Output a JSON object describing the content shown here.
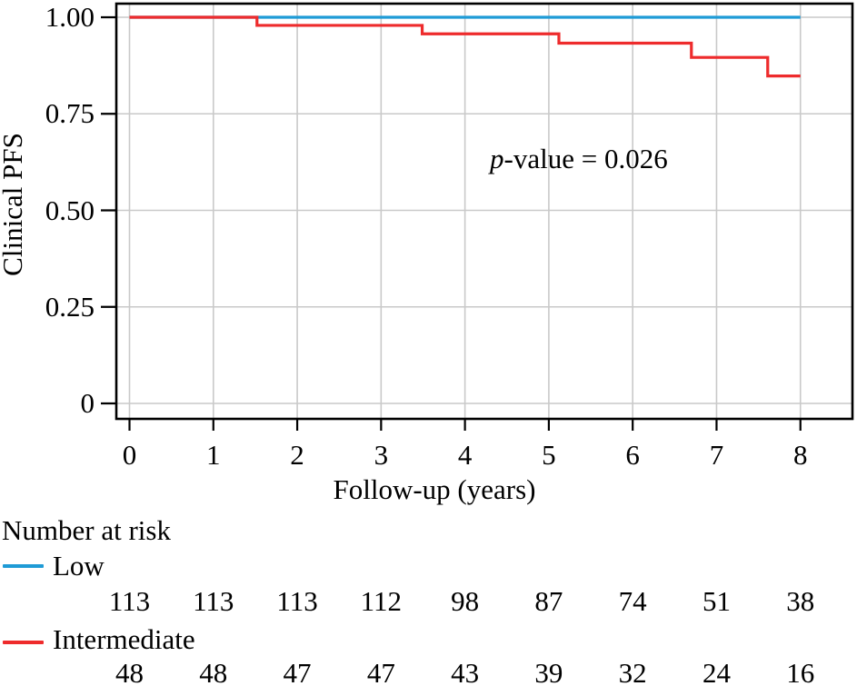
{
  "figure": {
    "background": "#ffffff"
  },
  "chart_data": {
    "type": "line",
    "subtype": "kaplan-meier-step",
    "title": "",
    "xlabel": "Follow-up (years)",
    "ylabel": "Clinical PFS",
    "xlim": [
      0,
      8
    ],
    "ylim": [
      0,
      1.0
    ],
    "xticks": [
      0,
      1,
      2,
      3,
      4,
      5,
      6,
      7,
      8
    ],
    "xtick_labels": [
      "0",
      "1",
      "2",
      "3",
      "4",
      "5",
      "6",
      "7",
      "8"
    ],
    "yticks": [
      0,
      0.25,
      0.5,
      0.75,
      1.0
    ],
    "ytick_labels": [
      "0",
      "0.25",
      "0.50",
      "0.75",
      "1.00"
    ],
    "grid": true,
    "grid_color": "#c9c9c9",
    "axis_color": "#000000",
    "legend_position": "below-left",
    "annotation": {
      "text": "p-value = 0.026",
      "italic_prefix": "p",
      "rest": "-value = 0.026"
    },
    "series": [
      {
        "name": "Low",
        "color": "#1f9bd6",
        "points": [
          [
            0,
            1.0
          ],
          [
            8,
            1.0
          ]
        ]
      },
      {
        "name": "Intermediate",
        "color": "#ee2b2c",
        "points": [
          [
            0,
            1.0
          ],
          [
            1.52,
            1.0
          ],
          [
            1.52,
            0.979
          ],
          [
            3.49,
            0.979
          ],
          [
            3.49,
            0.957
          ],
          [
            5.12,
            0.957
          ],
          [
            5.12,
            0.933
          ],
          [
            6.7,
            0.933
          ],
          [
            6.7,
            0.896
          ],
          [
            7.61,
            0.896
          ],
          [
            7.61,
            0.848
          ],
          [
            8,
            0.848
          ]
        ]
      }
    ],
    "number_at_risk": {
      "heading": "Number at risk",
      "times": [
        0,
        1,
        2,
        3,
        4,
        5,
        6,
        7,
        8
      ],
      "rows": [
        {
          "name": "Low",
          "color": "#1f9bd6",
          "counts": [
            "113",
            "113",
            "113",
            "112",
            "98",
            "87",
            "74",
            "51",
            "38"
          ]
        },
        {
          "name": "Intermediate",
          "color": "#ee2b2c",
          "counts": [
            "48",
            "48",
            "47",
            "47",
            "43",
            "39",
            "32",
            "24",
            "16"
          ]
        }
      ]
    }
  }
}
